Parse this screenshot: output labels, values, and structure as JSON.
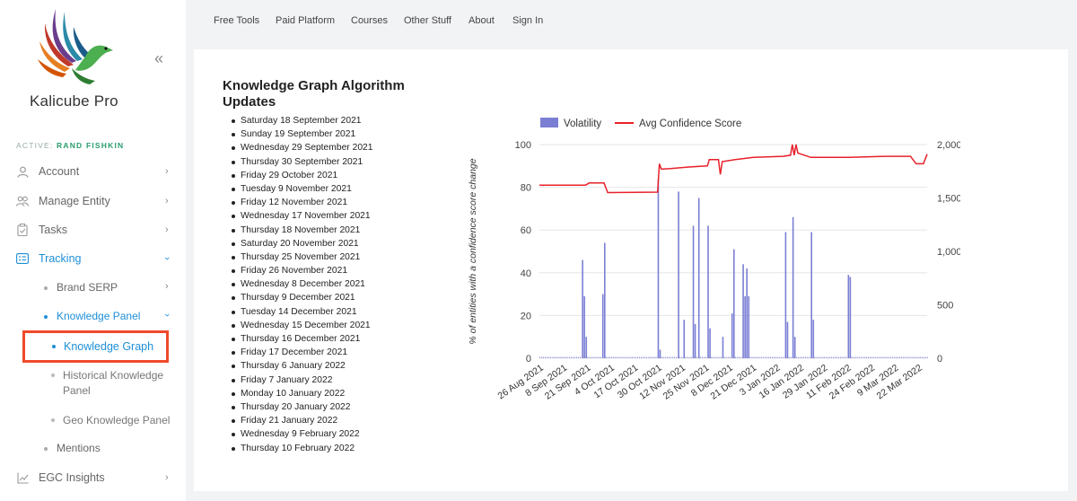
{
  "brand": {
    "name": "Kalicube Pro",
    "collapse_icon": "«"
  },
  "active": {
    "prefix": "ACTIVE:",
    "user": "RAND FISHKIN"
  },
  "sidebar": {
    "items": [
      {
        "label": "Account",
        "icon": "person-icon"
      },
      {
        "label": "Manage Entity",
        "icon": "users-icon"
      },
      {
        "label": "Tasks",
        "icon": "clipboard-icon"
      },
      {
        "label": "Tracking",
        "icon": "list-card-icon"
      },
      {
        "label": "EGC Insights",
        "icon": "trend-chart-icon"
      }
    ],
    "tracking_sub": [
      {
        "label": "Brand SERP"
      },
      {
        "label": "Knowledge Panel"
      },
      {
        "label": "Mentions"
      }
    ],
    "kp_sub": [
      {
        "label": "Knowledge Graph"
      },
      {
        "label": "Historical Knowledge Panel"
      },
      {
        "label": "Geo Knowledge Panel"
      }
    ]
  },
  "topnav": [
    "Free Tools",
    "Paid Platform",
    "Courses",
    "Other Stuff",
    "About",
    "Sign In"
  ],
  "updates": {
    "title": "Knowledge Graph Algorithm Updates",
    "dates": [
      "Saturday 18 September 2021",
      "Sunday 19 September 2021",
      "Wednesday 29 September 2021",
      "Thursday 30 September 2021",
      "Friday 29 October 2021",
      "Tuesday 9 November 2021",
      "Friday 12 November 2021",
      "Wednesday 17 November 2021",
      "Thursday 18 November 2021",
      "Saturday 20 November 2021",
      "Thursday 25 November 2021",
      "Friday 26 November 2021",
      "Wednesday 8 December 2021",
      "Thursday 9 December 2021",
      "Tuesday 14 December 2021",
      "Wednesday 15 December 2021",
      "Thursday 16 December 2021",
      "Friday 17 December 2021",
      "Thursday 6 January 2022",
      "Friday 7 January 2022",
      "Monday 10 January 2022",
      "Thursday 20 January 2022",
      "Friday 21 January 2022",
      "Wednesday 9 February 2022",
      "Thursday 10 February 2022"
    ]
  },
  "chart_data": {
    "type": "bar+line",
    "legend": [
      "Volatility",
      "Avg Confidence Score"
    ],
    "legend_position": "top",
    "ylabel": "% of entities with a confidence score change",
    "y2label": "Avg Confidence Score",
    "ylim": [
      0,
      100
    ],
    "y2lim": [
      0,
      2000
    ],
    "yticks": [
      "0",
      "20",
      "40",
      "60",
      "80",
      "100"
    ],
    "y2ticks": [
      "0",
      "500",
      "1,000",
      "1,500",
      "2,000"
    ],
    "xticks": [
      "26 Aug 2021",
      "8 Sep 2021",
      "21 Sep 2021",
      "4 Oct 2021",
      "17 Oct 2021",
      "30 Oct 2021",
      "12 Nov 2021",
      "25 Nov 2021",
      "8 Dec 2021",
      "21 Dec 2021",
      "3 Jan 2022",
      "16 Jan 2022",
      "29 Jan 2022",
      "11 Feb 2022",
      "24 Feb 2022",
      "9 Mar 2022",
      "22 Mar 2022"
    ],
    "x_start": "2021-08-26",
    "volatility_spikes": [
      {
        "date": "2021-09-18",
        "value": 46
      },
      {
        "date": "2021-09-19",
        "value": 29
      },
      {
        "date": "2021-09-20",
        "value": 10
      },
      {
        "date": "2021-09-29",
        "value": 30
      },
      {
        "date": "2021-09-30",
        "value": 54
      },
      {
        "date": "2021-10-29",
        "value": 84
      },
      {
        "date": "2021-10-30",
        "value": 4
      },
      {
        "date": "2021-11-09",
        "value": 78
      },
      {
        "date": "2021-11-12",
        "value": 18
      },
      {
        "date": "2021-11-17",
        "value": 62
      },
      {
        "date": "2021-11-18",
        "value": 16
      },
      {
        "date": "2021-11-20",
        "value": 75
      },
      {
        "date": "2021-11-25",
        "value": 62
      },
      {
        "date": "2021-11-26",
        "value": 14
      },
      {
        "date": "2021-12-03",
        "value": 10
      },
      {
        "date": "2021-12-08",
        "value": 21
      },
      {
        "date": "2021-12-09",
        "value": 51
      },
      {
        "date": "2021-12-14",
        "value": 44
      },
      {
        "date": "2021-12-15",
        "value": 29
      },
      {
        "date": "2021-12-16",
        "value": 42
      },
      {
        "date": "2021-12-17",
        "value": 29
      },
      {
        "date": "2022-01-06",
        "value": 59
      },
      {
        "date": "2022-01-07",
        "value": 17
      },
      {
        "date": "2022-01-10",
        "value": 66
      },
      {
        "date": "2022-01-11",
        "value": 10
      },
      {
        "date": "2022-01-20",
        "value": 59
      },
      {
        "date": "2022-01-21",
        "value": 18
      },
      {
        "date": "2022-02-09",
        "value": 39
      },
      {
        "date": "2022-02-10",
        "value": 38
      }
    ],
    "avg_confidence_score": [
      {
        "date": "2021-08-26",
        "value": 1620
      },
      {
        "date": "2021-09-20",
        "value": 1620
      },
      {
        "date": "2021-09-22",
        "value": 1640
      },
      {
        "date": "2021-09-30",
        "value": 1640
      },
      {
        "date": "2021-10-02",
        "value": 1550
      },
      {
        "date": "2021-10-29",
        "value": 1555
      },
      {
        "date": "2021-10-30",
        "value": 1820
      },
      {
        "date": "2021-10-31",
        "value": 1770
      },
      {
        "date": "2021-11-05",
        "value": 1775
      },
      {
        "date": "2021-11-15",
        "value": 1790
      },
      {
        "date": "2021-11-25",
        "value": 1800
      },
      {
        "date": "2021-11-26",
        "value": 1860
      },
      {
        "date": "2021-12-01",
        "value": 1860
      },
      {
        "date": "2021-12-02",
        "value": 1720
      },
      {
        "date": "2021-12-03",
        "value": 1840
      },
      {
        "date": "2021-12-10",
        "value": 1860
      },
      {
        "date": "2021-12-20",
        "value": 1880
      },
      {
        "date": "2022-01-05",
        "value": 1890
      },
      {
        "date": "2022-01-09",
        "value": 1900
      },
      {
        "date": "2022-01-10",
        "value": 2000
      },
      {
        "date": "2022-01-11",
        "value": 1900
      },
      {
        "date": "2022-01-12",
        "value": 2000
      },
      {
        "date": "2022-01-13",
        "value": 1920
      },
      {
        "date": "2022-01-20",
        "value": 1880
      },
      {
        "date": "2022-02-10",
        "value": 1880
      },
      {
        "date": "2022-03-01",
        "value": 1890
      },
      {
        "date": "2022-03-15",
        "value": 1890
      },
      {
        "date": "2022-03-18",
        "value": 1820
      },
      {
        "date": "2022-03-22",
        "value": 1820
      },
      {
        "date": "2022-03-24",
        "value": 1910
      }
    ],
    "colors": {
      "volatility": "#7b7fd4",
      "confidence": "#e8202a"
    }
  }
}
